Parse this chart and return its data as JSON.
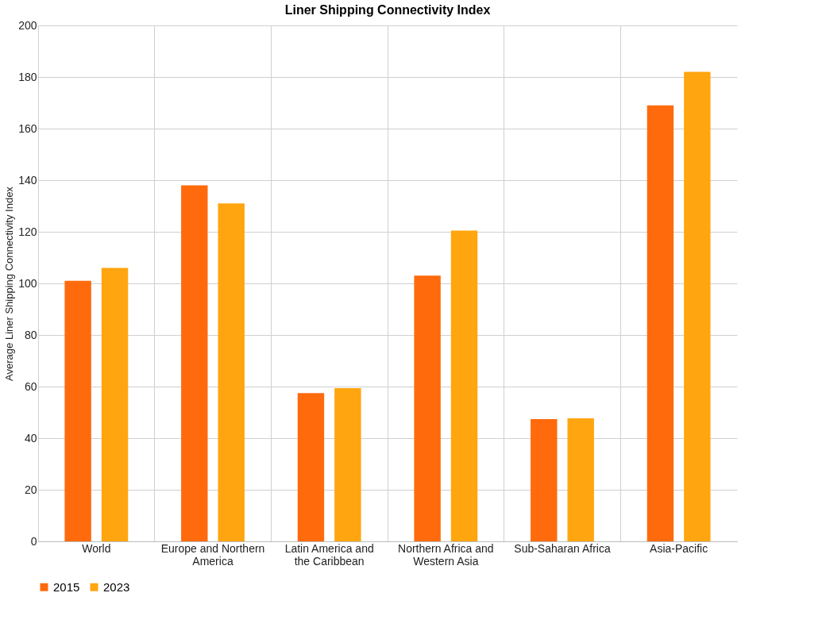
{
  "chart_data": {
    "type": "bar",
    "title": "Liner Shipping Connectivity Index",
    "ylabel": "Average Liner Shipping Connectivity Index",
    "categories": [
      "World",
      "Europe and Northern America",
      "Latin America and the Caribbean",
      "Northern Africa and Western Asia",
      "Sub-Saharan Africa",
      "Asia-Pacific"
    ],
    "series": [
      {
        "name": "2015",
        "color": "#ff6a0d",
        "values": [
          101,
          138,
          57.5,
          103,
          47.4,
          169
        ]
      },
      {
        "name": "2023",
        "color": "#ffa50f",
        "values": [
          106,
          131,
          59.4,
          120.5,
          47.7,
          182
        ]
      }
    ],
    "ylim": [
      0,
      200
    ],
    "yticks": [
      0,
      20,
      40,
      60,
      80,
      100,
      120,
      140,
      160,
      180,
      200
    ],
    "grid": true,
    "legend": "bottom"
  }
}
